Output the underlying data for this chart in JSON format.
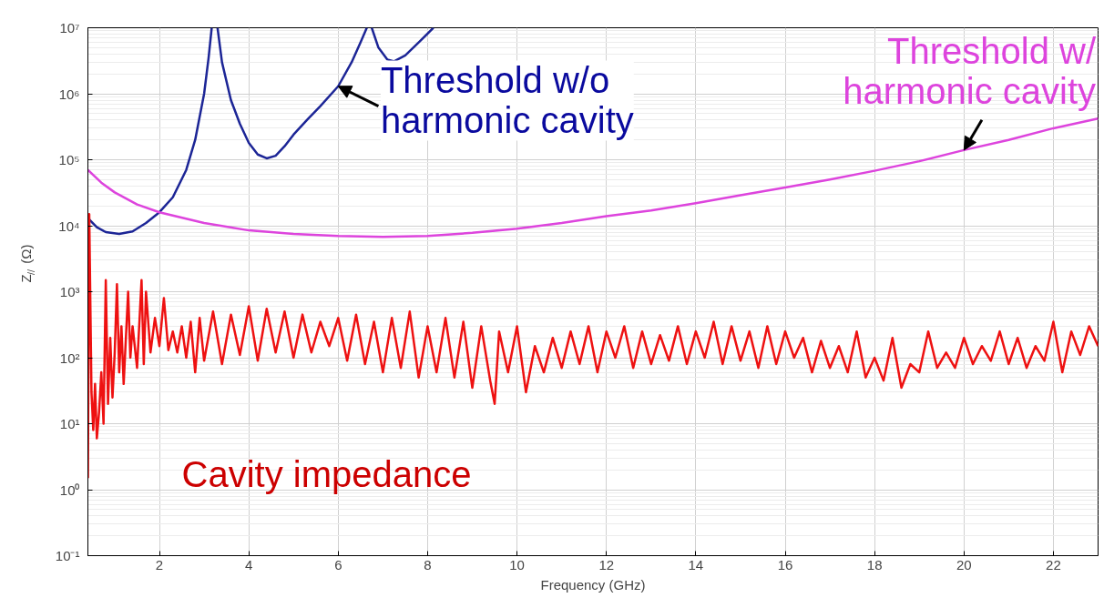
{
  "chart_data": {
    "type": "line",
    "xlabel": "Frequency (GHz)",
    "ylabel": "Z$_{//}$ (Ω)",
    "log": "y",
    "grid": true,
    "marker": "none",
    "line_style": "solid",
    "xlim": [
      0.4,
      23
    ],
    "xticks": [
      2,
      4,
      6,
      8,
      10,
      12,
      14,
      16,
      18,
      20,
      22
    ],
    "ylim": [
      0.1,
      10000000
    ],
    "yticks": [
      {
        "value": 0.1,
        "label": "10⁻¹"
      },
      {
        "value": 1,
        "label": "10⁰"
      },
      {
        "value": 10,
        "label": "10¹"
      },
      {
        "value": 100,
        "label": "10²"
      },
      {
        "value": 1000,
        "label": "10³"
      },
      {
        "value": 10000,
        "label": "10⁴"
      },
      {
        "value": 100000,
        "label": "10⁵"
      },
      {
        "value": 1000000,
        "label": "10⁶"
      },
      {
        "value": 10000000,
        "label": "10⁷"
      }
    ],
    "series": [
      {
        "name": "Threshold w/o harmonic cavity",
        "color": "#1c2596",
        "x": [
          0.4,
          0.6,
          0.8,
          1.1,
          1.4,
          1.7,
          2.0,
          2.3,
          2.6,
          2.8,
          3.0,
          3.1,
          3.17,
          3.25,
          3.3,
          3.4,
          3.6,
          3.8,
          4.0,
          4.2,
          4.4,
          4.6,
          4.8,
          5.0,
          5.3,
          5.6,
          6.0,
          6.3,
          6.5,
          6.64,
          6.7,
          6.75,
          6.9,
          7.1,
          7.25,
          7.5,
          7.8,
          8.13
        ],
        "values": [
          13000,
          9500,
          8000,
          7500,
          8200,
          11000,
          16000,
          27000,
          70000,
          200000,
          1000000,
          3500000,
          10000000,
          null,
          10000000,
          3000000,
          800000,
          350000,
          180000,
          120000,
          105000,
          115000,
          160000,
          240000,
          400000,
          650000,
          1300000,
          3000000,
          6000000,
          10000000,
          null,
          10000000,
          5000000,
          3300000,
          3100000,
          3800000,
          6000000,
          10000000
        ]
      },
      {
        "name": "Threshold w/ harmonic cavity",
        "color": "#dd44dd",
        "x": [
          0.4,
          0.7,
          1.0,
          1.5,
          2,
          3,
          4,
          5,
          6,
          7,
          8,
          9,
          10,
          11,
          12,
          13,
          14,
          15,
          16,
          17,
          18,
          19,
          20,
          21,
          22,
          23
        ],
        "values": [
          70000,
          45000,
          32000,
          21000,
          16000,
          11000,
          8500,
          7500,
          7000,
          6800,
          7000,
          7800,
          9000,
          11000,
          14000,
          17000,
          22000,
          29000,
          38000,
          50000,
          68000,
          95000,
          140000,
          200000,
          300000,
          420000
        ]
      },
      {
        "name": "Cavity impedance",
        "color": "#ee1111",
        "x": [
          0.4,
          0.43,
          0.48,
          0.52,
          0.56,
          0.6,
          0.65,
          0.7,
          0.75,
          0.8,
          0.85,
          0.9,
          0.95,
          1.0,
          1.05,
          1.1,
          1.15,
          1.2,
          1.3,
          1.35,
          1.4,
          1.5,
          1.6,
          1.65,
          1.7,
          1.8,
          1.9,
          2.0,
          2.1,
          2.2,
          2.3,
          2.4,
          2.5,
          2.6,
          2.7,
          2.8,
          2.9,
          3.0,
          3.2,
          3.4,
          3.6,
          3.8,
          4.0,
          4.2,
          4.4,
          4.6,
          4.8,
          5.0,
          5.2,
          5.4,
          5.6,
          5.8,
          6.0,
          6.2,
          6.4,
          6.6,
          6.8,
          7.0,
          7.2,
          7.4,
          7.6,
          7.8,
          8.0,
          8.2,
          8.4,
          8.6,
          8.8,
          9.0,
          9.2,
          9.4,
          9.5,
          9.6,
          9.8,
          10.0,
          10.2,
          10.4,
          10.6,
          10.8,
          11.0,
          11.2,
          11.4,
          11.6,
          11.8,
          12.0,
          12.2,
          12.4,
          12.6,
          12.8,
          13.0,
          13.2,
          13.4,
          13.6,
          13.8,
          14.0,
          14.2,
          14.4,
          14.6,
          14.8,
          15.0,
          15.2,
          15.4,
          15.6,
          15.8,
          16.0,
          16.2,
          16.4,
          16.6,
          16.8,
          17.0,
          17.2,
          17.4,
          17.6,
          17.8,
          18.0,
          18.2,
          18.4,
          18.6,
          18.8,
          19.0,
          19.2,
          19.4,
          19.6,
          19.8,
          20.0,
          20.2,
          20.4,
          20.6,
          20.8,
          21.0,
          21.2,
          21.4,
          21.6,
          21.8,
          22.0,
          22.2,
          22.4,
          22.6,
          22.8,
          23.0
        ],
        "values": [
          1.5,
          15000,
          30,
          8,
          40,
          6,
          15,
          60,
          10,
          1500,
          20,
          200,
          25,
          120,
          1300,
          60,
          300,
          40,
          1000,
          100,
          300,
          70,
          1500,
          80,
          1000,
          120,
          400,
          150,
          800,
          130,
          250,
          120,
          300,
          100,
          350,
          60,
          400,
          90,
          500,
          80,
          450,
          110,
          600,
          90,
          550,
          120,
          500,
          100,
          450,
          120,
          350,
          150,
          400,
          90,
          450,
          80,
          350,
          60,
          400,
          70,
          500,
          50,
          300,
          60,
          400,
          50,
          350,
          35,
          300,
          45,
          20,
          250,
          60,
          300,
          30,
          150,
          60,
          200,
          70,
          250,
          80,
          300,
          60,
          250,
          100,
          300,
          70,
          250,
          80,
          220,
          90,
          300,
          80,
          250,
          100,
          350,
          80,
          300,
          90,
          250,
          70,
          300,
          80,
          250,
          100,
          200,
          60,
          180,
          70,
          150,
          60,
          250,
          50,
          100,
          45,
          200,
          35,
          80,
          60,
          250,
          70,
          120,
          70,
          200,
          80,
          150,
          90,
          250,
          80,
          200,
          70,
          150,
          90,
          350,
          60,
          250,
          110,
          300,
          150
        ]
      }
    ]
  }
}
